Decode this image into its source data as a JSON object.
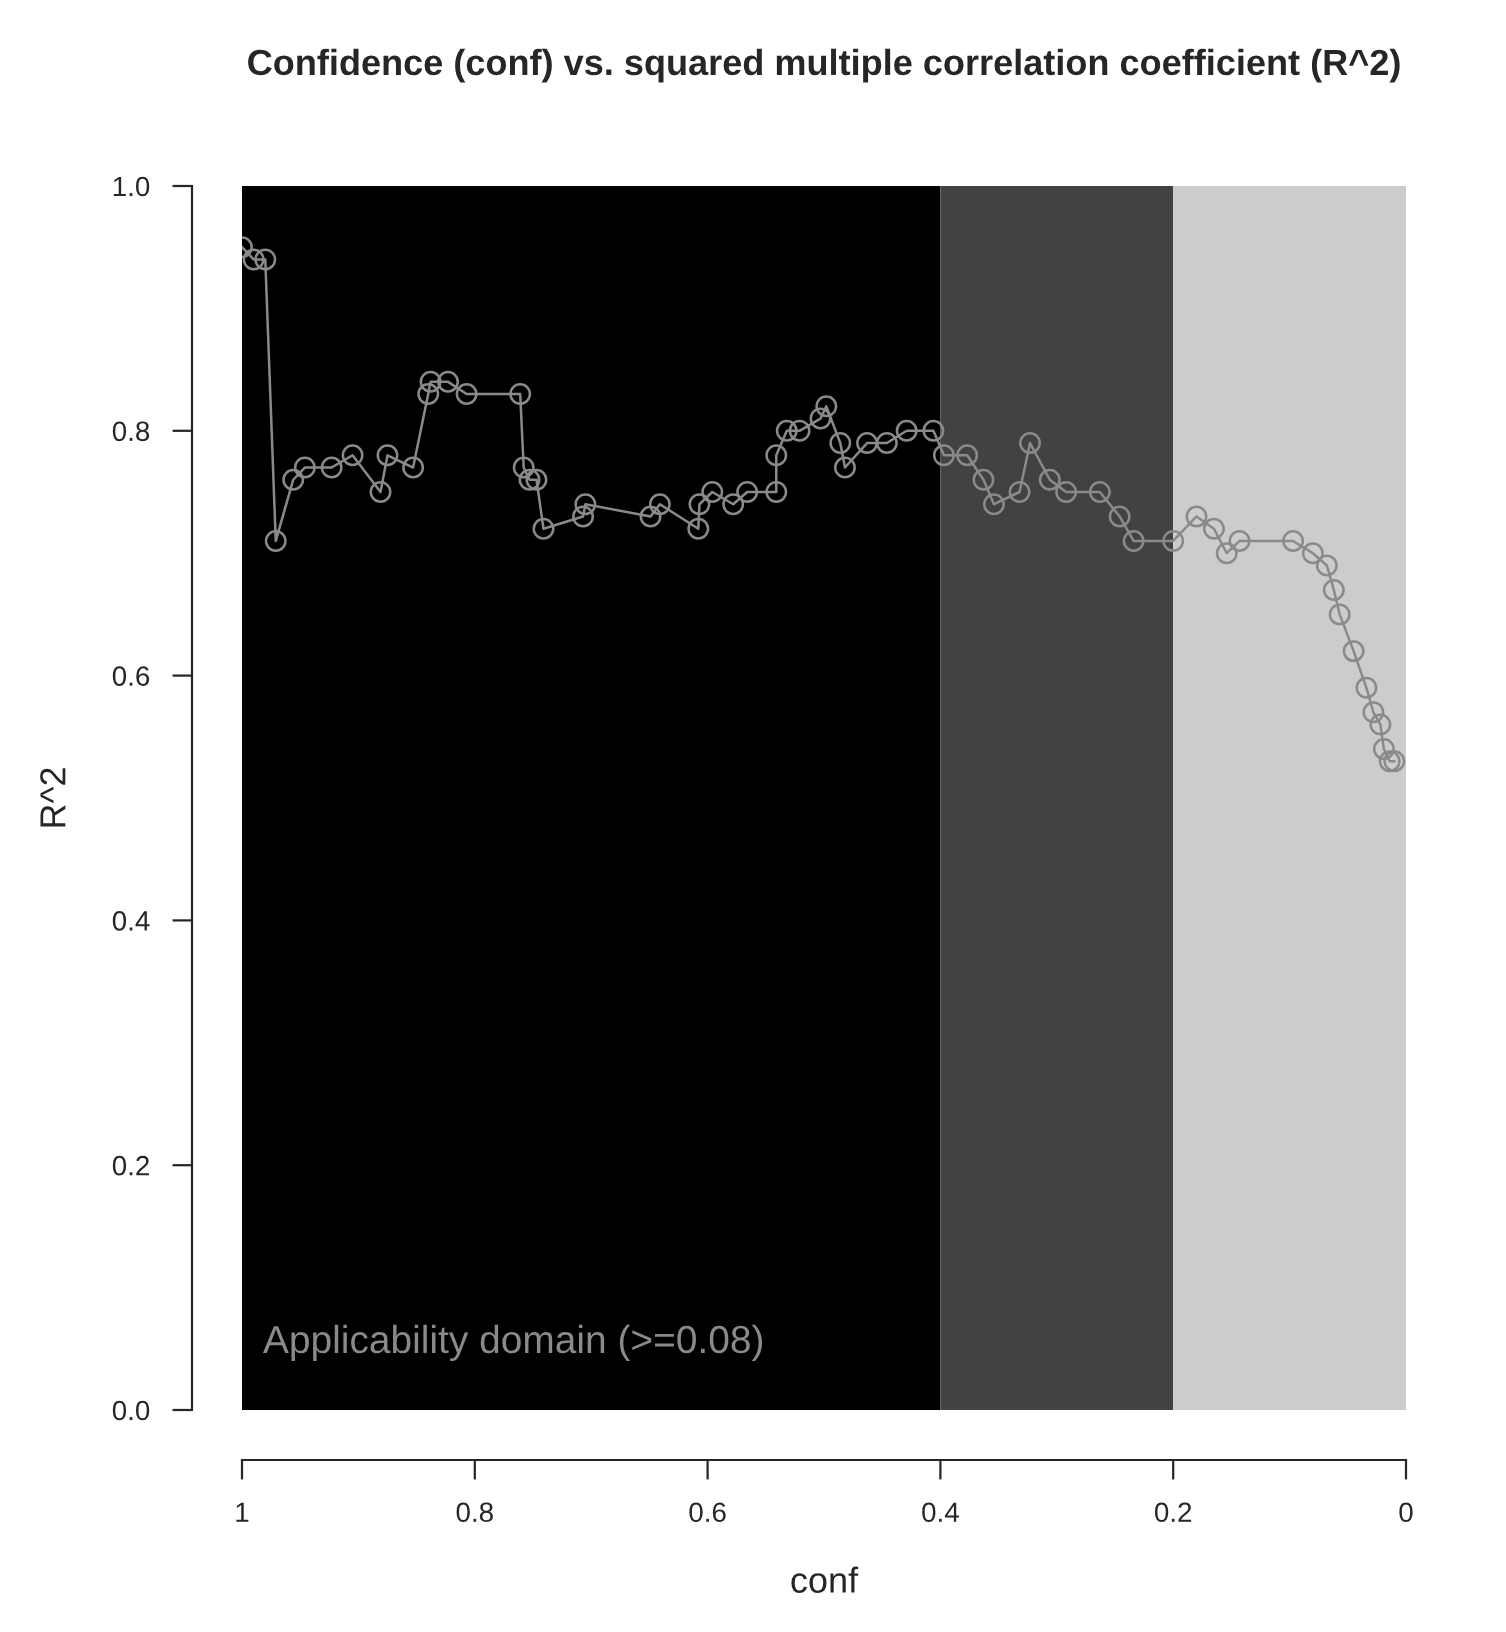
{
  "chart_data": {
    "type": "line",
    "title": "Confidence (conf) vs. squared multiple correlation coefficient (R^2)",
    "xlabel": "conf",
    "ylabel": "R^2",
    "x": [
      1.0,
      0.99,
      0.98,
      0.971,
      0.956,
      0.946,
      0.923,
      0.905,
      0.881,
      0.875,
      0.853,
      0.84,
      0.838,
      0.823,
      0.807,
      0.761,
      0.758,
      0.753,
      0.747,
      0.741,
      0.707,
      0.705,
      0.649,
      0.641,
      0.608,
      0.607,
      0.596,
      0.578,
      0.566,
      0.541,
      0.541,
      0.532,
      0.521,
      0.503,
      0.498,
      0.486,
      0.482,
      0.463,
      0.446,
      0.429,
      0.406,
      0.397,
      0.377,
      0.363,
      0.354,
      0.332,
      0.323,
      0.306,
      0.292,
      0.263,
      0.246,
      0.234,
      0.2,
      0.18,
      0.165,
      0.154,
      0.143,
      0.097,
      0.08,
      0.068,
      0.062,
      0.057,
      0.045,
      0.034,
      0.028,
      0.022,
      0.019,
      0.014,
      0.01
    ],
    "series": [
      {
        "color": "#8a8a8a",
        "values": [
          0.95,
          0.94,
          0.94,
          0.71,
          0.76,
          0.77,
          0.77,
          0.78,
          0.75,
          0.78,
          0.77,
          0.83,
          0.84,
          0.84,
          0.83,
          0.83,
          0.77,
          0.76,
          0.76,
          0.72,
          0.73,
          0.74,
          0.73,
          0.74,
          0.72,
          0.74,
          0.75,
          0.74,
          0.75,
          0.75,
          0.78,
          0.8,
          0.8,
          0.81,
          0.82,
          0.79,
          0.77,
          0.79,
          0.79,
          0.8,
          0.8,
          0.78,
          0.78,
          0.76,
          0.74,
          0.75,
          0.79,
          0.76,
          0.75,
          0.75,
          0.73,
          0.71,
          0.71,
          0.73,
          0.72,
          0.7,
          0.71,
          0.71,
          0.7,
          0.69,
          0.67,
          0.65,
          0.62,
          0.59,
          0.57,
          0.56,
          0.54,
          0.53,
          0.53
        ]
      }
    ],
    "xlim": [
      1,
      0
    ],
    "ylim": [
      0,
      1
    ],
    "xticks": [
      {
        "value": 1,
        "label": "1"
      },
      0.8,
      0.6,
      0.4,
      0.2,
      {
        "value": 0,
        "label": "0"
      }
    ],
    "yticks": [
      {
        "value": 0,
        "label": "0.0"
      },
      0.2,
      0.4,
      0.6,
      0.8,
      {
        "value": 1,
        "label": "1.0"
      }
    ],
    "bands": [
      {
        "axis": "x",
        "from": 1,
        "to": 0.4,
        "color": "#000000"
      },
      {
        "axis": "x",
        "from": 0.4,
        "to": 0.2,
        "color": "#424242"
      },
      {
        "axis": "x",
        "from": 0.2,
        "to": 0,
        "color": "#cccccc"
      }
    ],
    "annotations": [
      "Applicability domain (>=0.08)"
    ],
    "marker": "circle",
    "line_style": "solid",
    "grid": false,
    "legend": false
  }
}
